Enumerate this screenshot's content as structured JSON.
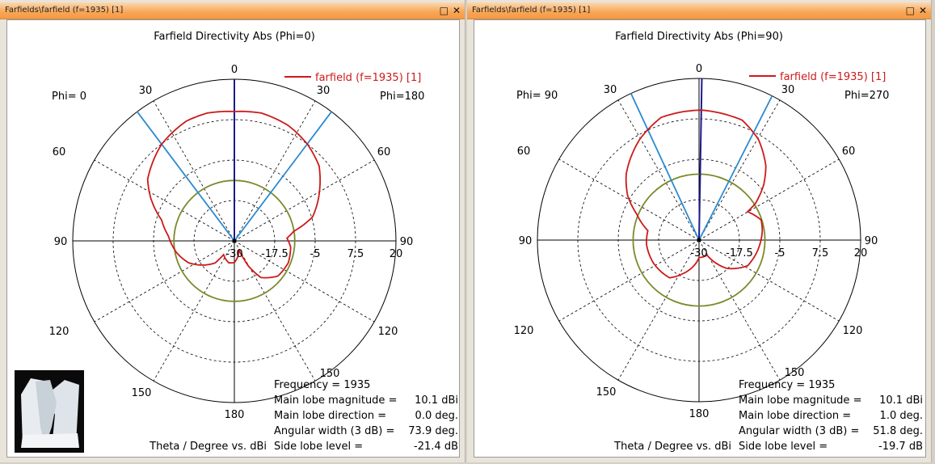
{
  "windows": [
    {
      "title": "Farfields\\farfield (f=1935) [1]",
      "maximize_icon": "maximize-icon",
      "close_icon": "close-icon"
    },
    {
      "title": "Farfields\\farfield (f=1935) [1]",
      "maximize_icon": "maximize-icon",
      "close_icon": "close-icon"
    }
  ],
  "buttons": {
    "maximize": "□",
    "close": "✕"
  },
  "colors": {
    "curve": "#cc1a1a",
    "main_lobe": "#1a1a8c",
    "beamwidth": "#2a8ad0",
    "side_lobe_circle": "#7a8a2a",
    "titlebar": "#f7a656"
  },
  "chart_data": [
    {
      "type": "polar-line",
      "title": "Farfield Directivity Abs (Phi=0)",
      "legend": "farfield (f=1935) [1]",
      "legend_position": "top-right",
      "phi_left": "Phi=  0",
      "phi_right": "Phi=180",
      "xlabel": "Theta / Degree vs. dBi",
      "radial_range": [
        -30,
        20
      ],
      "radial_ticks": [
        "-30",
        "-17.5",
        "-5",
        "7.5",
        "20"
      ],
      "angle_labels_left": [
        "0",
        "30",
        "60",
        "90",
        "120",
        "150",
        "180"
      ],
      "angle_labels_right": [
        "30",
        "60",
        "90",
        "120",
        "150"
      ],
      "main_lobe_direction": 0.0,
      "beamwidth": 73.9,
      "side_lobe_circle_db": -11.3,
      "theta": [
        0,
        12,
        25,
        37,
        48.5,
        56.7,
        73,
        81,
        87,
        96,
        112,
        129,
        144,
        151,
        154,
        180,
        194,
        218,
        221,
        244.5,
        259,
        274.4,
        286,
        297,
        305.4,
        323,
        338,
        348
      ],
      "values": [
        10.0,
        10.4,
        9.4,
        7.5,
        5.0,
        1.7,
        -4.7,
        -11.5,
        -13.7,
        -12.5,
        -12.0,
        -12.7,
        -16.0,
        -21.3,
        -27.0,
        -23.3,
        -23.0,
        -24.6,
        -21.0,
        -14.3,
        -11.7,
        -9.5,
        -6.6,
        -1.0,
        2.9,
        7.4,
        9.9,
        10.4
      ],
      "info": [
        {
          "label": "Frequency = 1935",
          "value": ""
        },
        {
          "label": "Main lobe magnitude =",
          "value": "10.1 dBi"
        },
        {
          "label": "Main lobe direction =",
          "value": "0.0 deg."
        },
        {
          "label": "Angular width (3 dB) =",
          "value": "73.9 deg."
        },
        {
          "label": "Side lobe level =",
          "value": "-21.4 dB"
        }
      ]
    },
    {
      "type": "polar-line",
      "title": "Farfield Directivity Abs (Phi=90)",
      "legend": "farfield (f=1935) [1]",
      "legend_position": "top-right",
      "phi_left": "Phi= 90",
      "phi_right": "Phi=270",
      "xlabel": "Theta / Degree vs. dBi",
      "radial_range": [
        -30,
        20
      ],
      "radial_ticks": [
        "-30",
        "-17.5",
        "-5",
        "7.5",
        "20"
      ],
      "angle_labels_left": [
        "0",
        "30",
        "60",
        "90",
        "120",
        "150",
        "180"
      ],
      "angle_labels_right": [
        "30",
        "60",
        "90",
        "120",
        "150"
      ],
      "main_lobe_direction": 1.0,
      "beamwidth": 51.8,
      "side_lobe_circle_db": -9.6,
      "theta": [
        1,
        19.8,
        30.4,
        42,
        49.5,
        57,
        59.7,
        72,
        81.5,
        99,
        117.8,
        136,
        152,
        180,
        205.6,
        218,
        243.5,
        265.6,
        280.5,
        292.5,
        301.9,
        312.2,
        329.6,
        342.9,
        352.8
      ],
      "values": [
        10.2,
        9.4,
        6.2,
        0.9,
        -3.7,
        -9.2,
        -12.6,
        -9.8,
        -10.2,
        -11.5,
        -13.0,
        -17.9,
        -24.7,
        -24.6,
        -18.5,
        -15.2,
        -14.2,
        -13.7,
        -13.9,
        -9.2,
        -4.0,
        0.4,
        6.2,
        9.7,
        10.0
      ],
      "info": [
        {
          "label": "Frequency = 1935",
          "value": ""
        },
        {
          "label": "Main lobe magnitude =",
          "value": "10.1 dBi"
        },
        {
          "label": "Main lobe direction =",
          "value": "1.0 deg."
        },
        {
          "label": "Angular width (3 dB) =",
          "value": "51.8 deg."
        },
        {
          "label": "Side lobe level =",
          "value": "-19.7 dB"
        }
      ]
    }
  ]
}
